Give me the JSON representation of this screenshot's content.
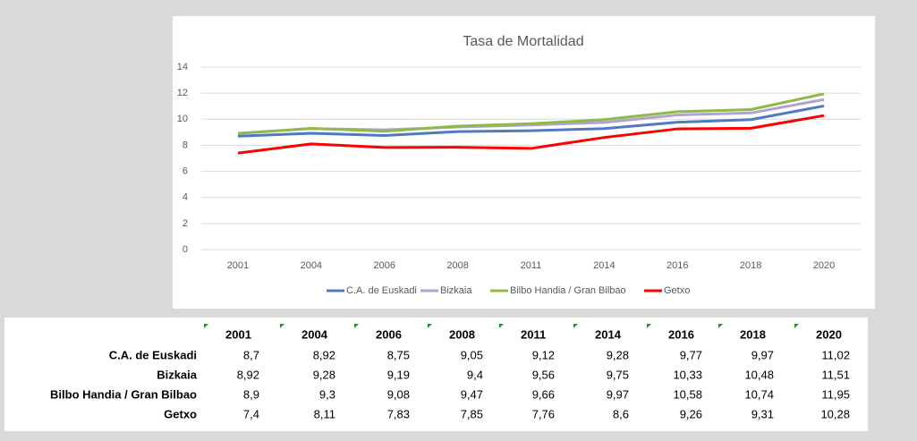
{
  "chart_data": {
    "type": "line",
    "title": "Tasa de Mortalidad",
    "categories": [
      "2001",
      "2004",
      "2006",
      "2008",
      "2011",
      "2014",
      "2016",
      "2018",
      "2020"
    ],
    "series": [
      {
        "name": "C.A. de Euskadi",
        "color": "#4f79c2",
        "values": [
          8.7,
          8.92,
          8.75,
          9.05,
          9.12,
          9.28,
          9.77,
          9.97,
          11.02
        ]
      },
      {
        "name": "Bizkaia",
        "color": "#b3a2cf",
        "values": [
          8.92,
          9.28,
          9.19,
          9.4,
          9.56,
          9.75,
          10.33,
          10.48,
          11.51
        ]
      },
      {
        "name": "Bilbo Handia / Gran Bilbao",
        "color": "#8dbb4a",
        "values": [
          8.9,
          9.3,
          9.08,
          9.47,
          9.66,
          9.97,
          10.58,
          10.74,
          11.95
        ]
      },
      {
        "name": "Getxo",
        "color": "#ff0000",
        "values": [
          7.4,
          8.11,
          7.83,
          7.85,
          7.76,
          8.6,
          9.26,
          9.31,
          10.28
        ]
      }
    ],
    "ylim": [
      0,
      14
    ],
    "yticks": [
      0,
      2,
      4,
      6,
      8,
      10,
      12,
      14
    ],
    "grid": true,
    "legend": "bottom"
  },
  "table": {
    "header": [
      "2001",
      "2004",
      "2006",
      "2008",
      "2011",
      "2014",
      "2016",
      "2018",
      "2020"
    ],
    "rows": [
      [
        "C.A. de Euskadi",
        "8,7",
        "8,92",
        "8,75",
        "9,05",
        "9,12",
        "9,28",
        "9,77",
        "9,97",
        "11,02"
      ],
      [
        "Bizkaia",
        "8,92",
        "9,28",
        "9,19",
        "9,4",
        "9,56",
        "9,75",
        "10,33",
        "10,48",
        "11,51"
      ],
      [
        "Bilbo Handia / Gran Bilbao",
        "8,9",
        "9,3",
        "9,08",
        "9,47",
        "9,66",
        "9,97",
        "10,58",
        "10,74",
        "11,95"
      ],
      [
        "Getxo",
        "7,4",
        "8,11",
        "7,83",
        "7,85",
        "7,76",
        "8,6",
        "9,26",
        "9,31",
        "10,28"
      ]
    ]
  }
}
